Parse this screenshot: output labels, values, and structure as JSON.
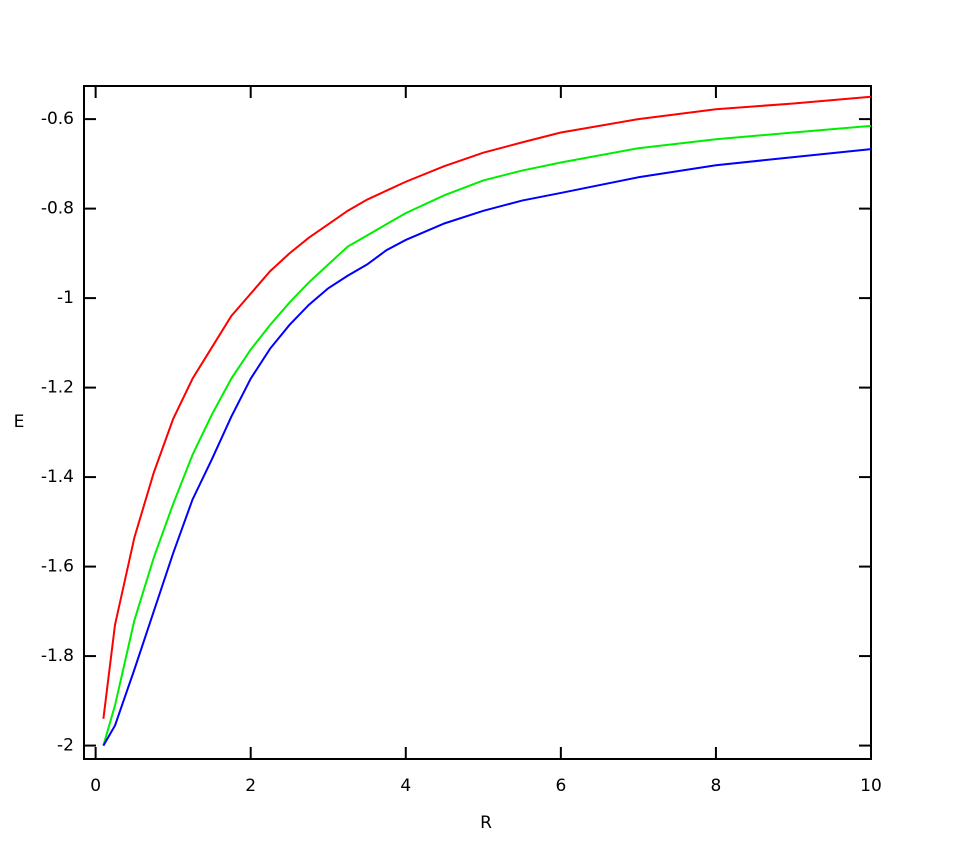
{
  "chart_data": {
    "type": "line",
    "x_label": "R",
    "y_label": "E",
    "x": [
      0.1,
      0.25,
      0.5,
      0.75,
      1,
      1.25,
      1.5,
      1.75,
      2,
      2.25,
      2.5,
      2.75,
      3,
      3.25,
      3.5,
      3.75,
      4,
      4.5,
      5,
      5.5,
      6,
      7,
      8,
      9,
      10
    ],
    "series": [
      {
        "color": "#ff0000",
        "values": [
          -1.94,
          -1.73,
          -1.535,
          -1.39,
          -1.27,
          -1.18,
          -1.11,
          -1.04,
          -0.99,
          -0.94,
          -0.9,
          -0.865,
          -0.835,
          -0.805,
          -0.78,
          -0.76,
          -0.74,
          -0.705,
          -0.675,
          -0.652,
          -0.63,
          -0.6,
          -0.578,
          -0.565,
          -0.55
        ]
      },
      {
        "color": "#00ee00",
        "values": [
          -2.0,
          -1.91,
          -1.72,
          -1.58,
          -1.46,
          -1.35,
          -1.26,
          -1.18,
          -1.115,
          -1.06,
          -1.01,
          -0.965,
          -0.925,
          -0.885,
          -0.86,
          -0.835,
          -0.81,
          -0.77,
          -0.737,
          -0.715,
          -0.697,
          -0.665,
          -0.645,
          -0.63,
          -0.615
        ]
      },
      {
        "color": "#0000ff",
        "values": [
          -2.0,
          -1.955,
          -1.83,
          -1.7,
          -1.57,
          -1.45,
          -1.36,
          -1.265,
          -1.18,
          -1.113,
          -1.06,
          -1.015,
          -0.978,
          -0.95,
          -0.925,
          -0.893,
          -0.87,
          -0.833,
          -0.805,
          -0.782,
          -0.765,
          -0.73,
          -0.703,
          -0.685,
          -0.667
        ]
      }
    ],
    "xlim": [
      -0.15,
      10
    ],
    "xticks": [
      0,
      2,
      4,
      6,
      8,
      10
    ],
    "ylim": [
      -2.03,
      -0.526
    ],
    "yticks": [
      -2,
      -1.8,
      -1.6,
      -1.4,
      -1.2,
      -1,
      -0.8,
      -0.6
    ],
    "grid": false
  }
}
